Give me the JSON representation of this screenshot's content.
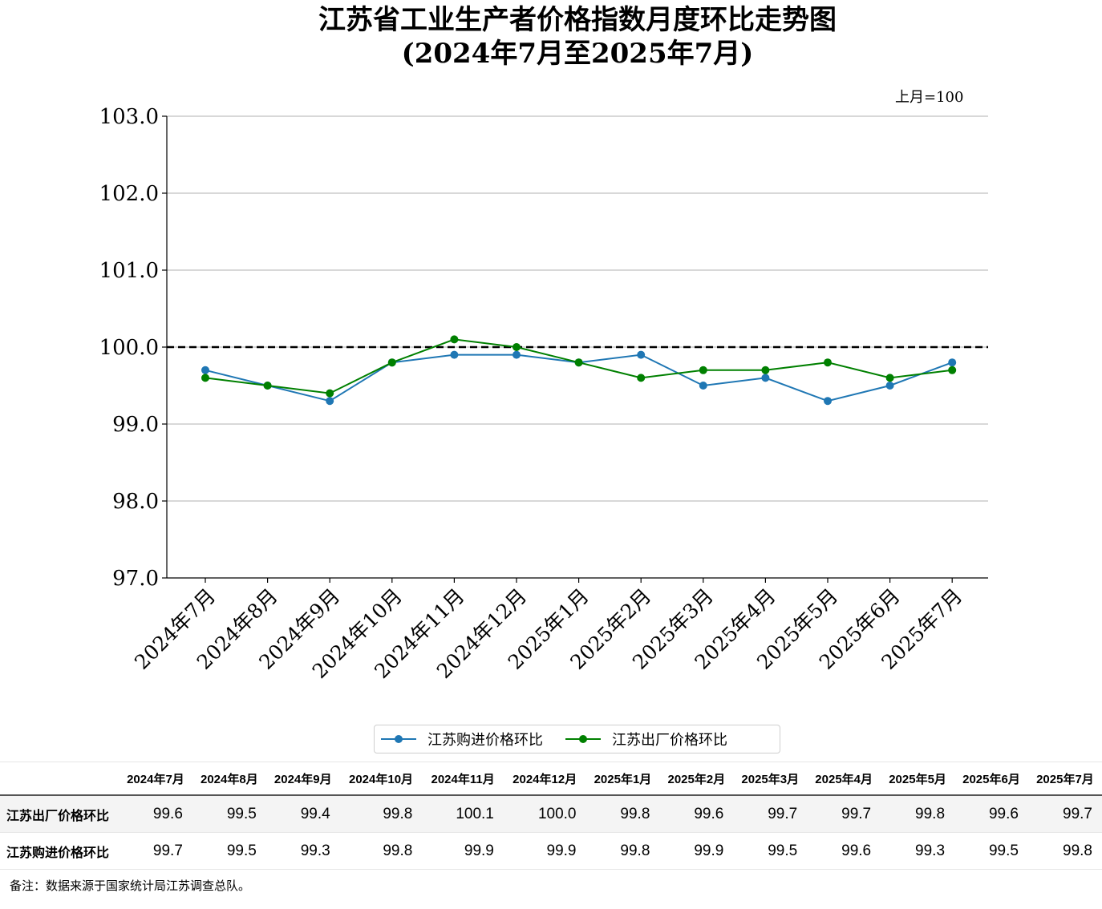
{
  "title_line1": "江苏省工业生产者价格指数月度环比走势图",
  "title_line2": "(2024年7月至2025年7月)",
  "unit_note": "上月=100",
  "footnote": "备注：数据来源于国家统计局江苏调查总队。",
  "colors": {
    "purchase": "#1f77b4",
    "factory": "#008000",
    "reference_line": "#000000",
    "grid": "#b0b0b0"
  },
  "chart_data": {
    "type": "line",
    "categories": [
      "2024年7月",
      "2024年8月",
      "2024年9月",
      "2024年10月",
      "2024年11月",
      "2024年12月",
      "2025年1月",
      "2025年2月",
      "2025年3月",
      "2025年4月",
      "2025年5月",
      "2025年6月",
      "2025年7月"
    ],
    "series": [
      {
        "name": "江苏购进价格环比",
        "color": "#1f77b4",
        "values": [
          99.7,
          99.5,
          99.3,
          99.8,
          99.9,
          99.9,
          99.8,
          99.9,
          99.5,
          99.6,
          99.3,
          99.5,
          99.8
        ]
      },
      {
        "name": "江苏出厂价格环比",
        "color": "#008000",
        "values": [
          99.6,
          99.5,
          99.4,
          99.8,
          100.1,
          100.0,
          99.8,
          99.6,
          99.7,
          99.7,
          99.8,
          99.6,
          99.7
        ]
      }
    ],
    "ylim": [
      97.0,
      103.0
    ],
    "yticks": [
      "97.0",
      "98.0",
      "99.0",
      "100.0",
      "101.0",
      "102.0",
      "103.0"
    ],
    "reference_line": 100.0,
    "grid": "horizontal",
    "legend_position": "bottom-center"
  },
  "table": {
    "headers": [
      "2024年7月",
      "2024年8月",
      "2024年9月",
      "2024年10月",
      "2024年11月",
      "2024年12月",
      "2025年1月",
      "2025年2月",
      "2025年3月",
      "2025年4月",
      "2025年5月",
      "2025年6月",
      "2025年7月"
    ],
    "rows": [
      {
        "label": "江苏出厂价格环比",
        "values": [
          "99.6",
          "99.5",
          "99.4",
          "99.8",
          "100.1",
          "100.0",
          "99.8",
          "99.6",
          "99.7",
          "99.7",
          "99.8",
          "99.6",
          "99.7"
        ]
      },
      {
        "label": "江苏购进价格环比",
        "values": [
          "99.7",
          "99.5",
          "99.3",
          "99.8",
          "99.9",
          "99.9",
          "99.8",
          "99.9",
          "99.5",
          "99.6",
          "99.3",
          "99.5",
          "99.8"
        ]
      }
    ]
  }
}
